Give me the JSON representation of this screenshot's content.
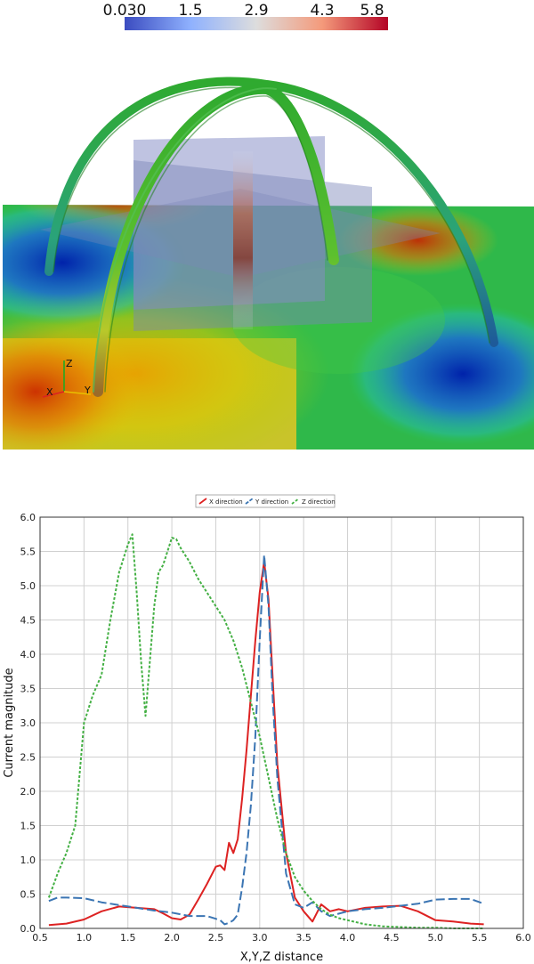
{
  "colorbar": {
    "tick_labels": [
      "0.030",
      "1.5",
      "2.9",
      "4.3",
      "5.8"
    ],
    "colors": [
      "#3b4cc0",
      "#8fb1fe",
      "#dddddd",
      "#f49a7b",
      "#b40426"
    ]
  },
  "scene": {
    "axes_labels": [
      "Z",
      "X",
      "Y"
    ],
    "tube_color": "#2faa2f",
    "plane_color": "#7a86b8"
  },
  "chart_data": {
    "type": "line",
    "title": "",
    "xlabel": "X,Y,Z distance",
    "ylabel": "Current magnitude",
    "xlim": [
      0.5,
      6.0
    ],
    "ylim": [
      0.0,
      6.0
    ],
    "xticks": [
      "0.5",
      "1.0",
      "1.5",
      "2.0",
      "2.5",
      "3.0",
      "3.5",
      "4.0",
      "4.5",
      "5.0",
      "5.5",
      "6.0"
    ],
    "yticks": [
      "0.0",
      "0.5",
      "1.0",
      "1.5",
      "2.0",
      "2.5",
      "3.0",
      "3.5",
      "4.0",
      "4.5",
      "5.0",
      "5.5",
      "6.0"
    ],
    "grid": true,
    "legend_position": "top-center",
    "series": [
      {
        "name": "X direction",
        "color": "#dd2222",
        "dash": "solid",
        "x": [
          0.6,
          0.8,
          1.0,
          1.2,
          1.4,
          1.6,
          1.8,
          1.9,
          2.0,
          2.1,
          2.2,
          2.3,
          2.4,
          2.5,
          2.55,
          2.6,
          2.65,
          2.7,
          2.75,
          2.8,
          2.85,
          2.9,
          2.95,
          3.0,
          3.05,
          3.1,
          3.15,
          3.2,
          3.3,
          3.4,
          3.5,
          3.6,
          3.7,
          3.8,
          3.9,
          4.0,
          4.2,
          4.4,
          4.6,
          4.8,
          5.0,
          5.2,
          5.4,
          5.55
        ],
        "y": [
          0.05,
          0.07,
          0.13,
          0.25,
          0.32,
          0.3,
          0.28,
          0.22,
          0.15,
          0.13,
          0.2,
          0.42,
          0.65,
          0.9,
          0.92,
          0.85,
          1.25,
          1.1,
          1.3,
          1.9,
          2.6,
          3.4,
          4.2,
          4.9,
          5.35,
          4.8,
          3.6,
          2.4,
          1.1,
          0.45,
          0.25,
          0.1,
          0.35,
          0.25,
          0.28,
          0.25,
          0.3,
          0.32,
          0.33,
          0.25,
          0.12,
          0.1,
          0.07,
          0.06
        ]
      },
      {
        "name": "Y direction",
        "color": "#3b75b3",
        "dash": "long",
        "x": [
          0.6,
          0.7,
          0.8,
          1.0,
          1.2,
          1.4,
          1.6,
          1.8,
          2.0,
          2.2,
          2.4,
          2.5,
          2.55,
          2.6,
          2.65,
          2.7,
          2.75,
          2.8,
          2.85,
          2.9,
          2.95,
          3.0,
          3.05,
          3.1,
          3.15,
          3.2,
          3.3,
          3.4,
          3.5,
          3.6,
          3.7,
          3.8,
          4.0,
          4.2,
          4.4,
          4.6,
          4.8,
          5.0,
          5.2,
          5.4,
          5.55
        ],
        "y": [
          0.4,
          0.45,
          0.45,
          0.44,
          0.38,
          0.34,
          0.3,
          0.26,
          0.23,
          0.18,
          0.18,
          0.14,
          0.12,
          0.06,
          0.08,
          0.12,
          0.2,
          0.6,
          1.1,
          1.8,
          2.8,
          4.2,
          5.45,
          4.7,
          3.3,
          2.2,
          0.8,
          0.35,
          0.3,
          0.38,
          0.25,
          0.18,
          0.25,
          0.28,
          0.3,
          0.33,
          0.36,
          0.42,
          0.43,
          0.43,
          0.36
        ]
      },
      {
        "name": "Z direction",
        "color": "#44b044",
        "dash": "short",
        "x": [
          0.6,
          0.7,
          0.8,
          0.9,
          1.0,
          1.1,
          1.2,
          1.3,
          1.4,
          1.45,
          1.5,
          1.55,
          1.6,
          1.65,
          1.7,
          1.75,
          1.8,
          1.85,
          1.9,
          1.95,
          2.0,
          2.05,
          2.1,
          2.2,
          2.3,
          2.4,
          2.5,
          2.6,
          2.7,
          2.8,
          2.9,
          3.0,
          3.1,
          3.2,
          3.3,
          3.4,
          3.5,
          3.6,
          3.7,
          3.8,
          3.9,
          4.0,
          4.2,
          4.4,
          4.6,
          4.8,
          5.0,
          5.2,
          5.4,
          5.55
        ],
        "y": [
          0.45,
          0.8,
          1.1,
          1.5,
          3.0,
          3.4,
          3.7,
          4.5,
          5.2,
          5.4,
          5.6,
          5.75,
          4.9,
          3.9,
          3.1,
          3.9,
          4.7,
          5.2,
          5.3,
          5.5,
          5.7,
          5.68,
          5.55,
          5.35,
          5.1,
          4.9,
          4.7,
          4.5,
          4.2,
          3.8,
          3.3,
          2.8,
          2.2,
          1.6,
          1.1,
          0.75,
          0.55,
          0.4,
          0.28,
          0.2,
          0.15,
          0.12,
          0.06,
          0.03,
          0.02,
          0.01,
          0.01,
          0.0,
          0.0,
          0.0
        ]
      }
    ]
  }
}
